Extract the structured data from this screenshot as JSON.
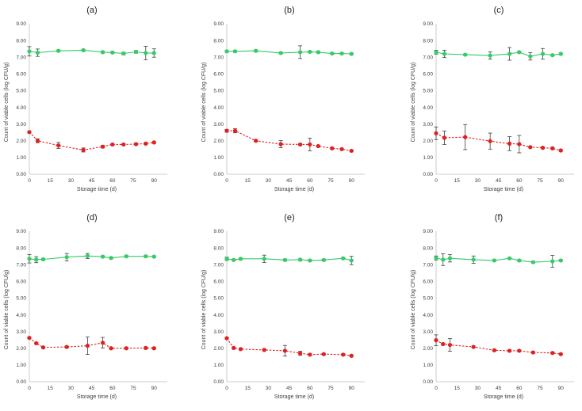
{
  "chart_data": [
    {
      "type": "line",
      "title": "(a)",
      "xlabel": "Storage time (d)",
      "ylabel": "Count of viable cells (log CFU/g)",
      "xticks": [
        0,
        15,
        30,
        45,
        60,
        75,
        90
      ],
      "yticks": [
        "0.00",
        "1.00",
        "2.00",
        "3.00",
        "4.00",
        "5.00",
        "6.00",
        "7.00",
        "8.00",
        "9.00"
      ],
      "xlim": [
        0,
        95
      ],
      "ylim": [
        0,
        9
      ],
      "series": [
        {
          "name": "green",
          "color": "#33cc66",
          "dash": false,
          "x": [
            0,
            6,
            21,
            39,
            53,
            60,
            68,
            77,
            84,
            90
          ],
          "y": [
            7.35,
            7.27,
            7.38,
            7.42,
            7.3,
            7.28,
            7.22,
            7.32,
            7.25,
            7.25
          ],
          "err": [
            0.28,
            0.22,
            0.05,
            0.05,
            0.05,
            0.05,
            0.08,
            0.08,
            0.4,
            0.25
          ]
        },
        {
          "name": "red",
          "color": "#e02020",
          "dash": true,
          "x": [
            0,
            6,
            21,
            39,
            53,
            60,
            68,
            77,
            84,
            90
          ],
          "y": [
            2.52,
            2.0,
            1.72,
            1.45,
            1.65,
            1.78,
            1.78,
            1.8,
            1.83,
            1.9
          ],
          "err": [
            0.05,
            0.12,
            0.18,
            0.12,
            0.08,
            0.05,
            0.05,
            0.05,
            0.05,
            0.05
          ]
        }
      ]
    },
    {
      "type": "line",
      "title": "(b)",
      "xlabel": "Storage time (d)",
      "ylabel": "Count of viable cells (log CFU/g)",
      "xticks": [
        0,
        15,
        30,
        45,
        60,
        75,
        90
      ],
      "yticks": [
        "0.00",
        "1.00",
        "2.00",
        "3.00",
        "4.00",
        "5.00",
        "6.00",
        "7.00",
        "8.00",
        "9.00"
      ],
      "xlim": [
        0,
        95
      ],
      "ylim": [
        0,
        9
      ],
      "series": [
        {
          "name": "green",
          "color": "#33cc66",
          "dash": false,
          "x": [
            0,
            6,
            21,
            39,
            53,
            60,
            66,
            76,
            83,
            90
          ],
          "y": [
            7.35,
            7.35,
            7.38,
            7.25,
            7.3,
            7.32,
            7.3,
            7.22,
            7.22,
            7.2
          ],
          "err": [
            0.05,
            0.05,
            0.05,
            0.05,
            0.38,
            0.05,
            0.05,
            0.05,
            0.05,
            0.05
          ]
        },
        {
          "name": "red",
          "color": "#e02020",
          "dash": true,
          "x": [
            0,
            6,
            21,
            39,
            53,
            60,
            66,
            76,
            83,
            90
          ],
          "y": [
            2.6,
            2.6,
            2.0,
            1.8,
            1.78,
            1.78,
            1.68,
            1.55,
            1.5,
            1.4
          ],
          "err": [
            0.08,
            0.12,
            0.05,
            0.22,
            0.05,
            0.38,
            0.05,
            0.05,
            0.05,
            0.05
          ]
        }
      ]
    },
    {
      "type": "line",
      "title": "(c)",
      "xlabel": "Storage time (d)",
      "ylabel": "Count of viable cells (log CFU/g)",
      "xticks": [
        0,
        15,
        30,
        45,
        60,
        75,
        90
      ],
      "yticks": [
        "0.00",
        "1.00",
        "2.00",
        "3.00",
        "4.00",
        "5.00",
        "6.00",
        "7.00",
        "8.00",
        "9.00"
      ],
      "xlim": [
        0,
        95
      ],
      "ylim": [
        0,
        9
      ],
      "series": [
        {
          "name": "green",
          "color": "#33cc66",
          "dash": false,
          "x": [
            0,
            6,
            21,
            39,
            53,
            60,
            68,
            77,
            84,
            90
          ],
          "y": [
            7.3,
            7.2,
            7.15,
            7.1,
            7.2,
            7.3,
            7.05,
            7.2,
            7.12,
            7.2
          ],
          "err": [
            0.12,
            0.22,
            0.05,
            0.22,
            0.38,
            0.05,
            0.22,
            0.32,
            0.05,
            0.05
          ]
        },
        {
          "name": "red",
          "color": "#e02020",
          "dash": true,
          "x": [
            0,
            6,
            21,
            39,
            53,
            60,
            68,
            77,
            84,
            90
          ],
          "y": [
            2.45,
            2.18,
            2.22,
            1.98,
            1.83,
            1.8,
            1.62,
            1.58,
            1.55,
            1.42
          ],
          "err": [
            0.38,
            0.4,
            0.75,
            0.48,
            0.42,
            0.52,
            0.05,
            0.05,
            0.05,
            0.05
          ]
        }
      ]
    },
    {
      "type": "line",
      "title": "(d)",
      "xlabel": "Storage time (d)",
      "ylabel": "Count of viable cells (log CFU/g)",
      "xticks": [
        0,
        15,
        30,
        45,
        60,
        75,
        90
      ],
      "yticks": [
        "0.00",
        "1.00",
        "2.00",
        "3.00",
        "4.00",
        "5.00",
        "6.00",
        "7.00",
        "8.00",
        "9.00"
      ],
      "xlim": [
        0,
        95
      ],
      "ylim": [
        0,
        9
      ],
      "series": [
        {
          "name": "green",
          "color": "#33cc66",
          "dash": false,
          "x": [
            0,
            5,
            10,
            27,
            42,
            53,
            59,
            70,
            84,
            90
          ],
          "y": [
            7.35,
            7.3,
            7.32,
            7.45,
            7.52,
            7.48,
            7.4,
            7.5,
            7.5,
            7.48
          ],
          "err": [
            0.25,
            0.18,
            0.05,
            0.22,
            0.15,
            0.05,
            0.05,
            0.05,
            0.05,
            0.05
          ]
        },
        {
          "name": "red",
          "color": "#e02020",
          "dash": true,
          "x": [
            0,
            5,
            10,
            27,
            42,
            53,
            59,
            70,
            84,
            90
          ],
          "y": [
            2.62,
            2.3,
            2.05,
            2.08,
            2.15,
            2.33,
            2.0,
            2.0,
            2.02,
            2.0
          ],
          "err": [
            0.05,
            0.05,
            0.05,
            0.05,
            0.52,
            0.32,
            0.05,
            0.05,
            0.05,
            0.05
          ]
        }
      ]
    },
    {
      "type": "line",
      "title": "(e)",
      "xlabel": "Storage time (d)",
      "ylabel": "Count of viable cells (log CFU/g)",
      "xticks": [
        0,
        15,
        30,
        45,
        60,
        75,
        90
      ],
      "yticks": [
        "0.00",
        "1.00",
        "2.00",
        "3.00",
        "4.00",
        "5.00",
        "6.00",
        "7.00",
        "8.00",
        "9.00"
      ],
      "xlim": [
        0,
        95
      ],
      "ylim": [
        0,
        9
      ],
      "series": [
        {
          "name": "green",
          "color": "#33cc66",
          "dash": false,
          "x": [
            0,
            5,
            10,
            27,
            42,
            53,
            60,
            70,
            84,
            90
          ],
          "y": [
            7.35,
            7.28,
            7.35,
            7.35,
            7.28,
            7.3,
            7.25,
            7.28,
            7.38,
            7.25
          ],
          "err": [
            0.1,
            0.05,
            0.05,
            0.22,
            0.05,
            0.05,
            0.05,
            0.05,
            0.05,
            0.25
          ]
        },
        {
          "name": "red",
          "color": "#e02020",
          "dash": true,
          "x": [
            0,
            5,
            10,
            27,
            42,
            53,
            60,
            70,
            84,
            90
          ],
          "y": [
            2.6,
            2.02,
            1.95,
            1.9,
            1.85,
            1.7,
            1.62,
            1.65,
            1.62,
            1.55
          ],
          "err": [
            0.05,
            0.05,
            0.05,
            0.05,
            0.32,
            0.12,
            0.05,
            0.05,
            0.05,
            0.05
          ]
        }
      ]
    },
    {
      "type": "line",
      "title": "(f)",
      "xlabel": "Storage time (d)",
      "ylabel": "Count of viable cells (log CFU/g)",
      "xticks": [
        0,
        15,
        30,
        45,
        60,
        75,
        90
      ],
      "yticks": [
        "0.00",
        "1.00",
        "2.00",
        "3.00",
        "4.00",
        "5.00",
        "6.00",
        "7.00",
        "8.00",
        "9.00"
      ],
      "xlim": [
        0,
        95
      ],
      "ylim": [
        0,
        9
      ],
      "series": [
        {
          "name": "green",
          "color": "#33cc66",
          "dash": false,
          "x": [
            0,
            5,
            10,
            27,
            42,
            53,
            60,
            70,
            84,
            90
          ],
          "y": [
            7.4,
            7.3,
            7.38,
            7.3,
            7.25,
            7.38,
            7.25,
            7.15,
            7.2,
            7.25
          ],
          "err": [
            0.12,
            0.35,
            0.22,
            0.22,
            0.05,
            0.05,
            0.05,
            0.05,
            0.35,
            0.05
          ]
        },
        {
          "name": "red",
          "color": "#e02020",
          "dash": true,
          "x": [
            0,
            5,
            10,
            27,
            42,
            53,
            60,
            70,
            84,
            90
          ],
          "y": [
            2.48,
            2.25,
            2.2,
            2.08,
            1.88,
            1.85,
            1.85,
            1.75,
            1.72,
            1.65
          ],
          "err": [
            0.32,
            0.05,
            0.38,
            0.05,
            0.05,
            0.05,
            0.05,
            0.05,
            0.05,
            0.05
          ]
        }
      ]
    }
  ]
}
